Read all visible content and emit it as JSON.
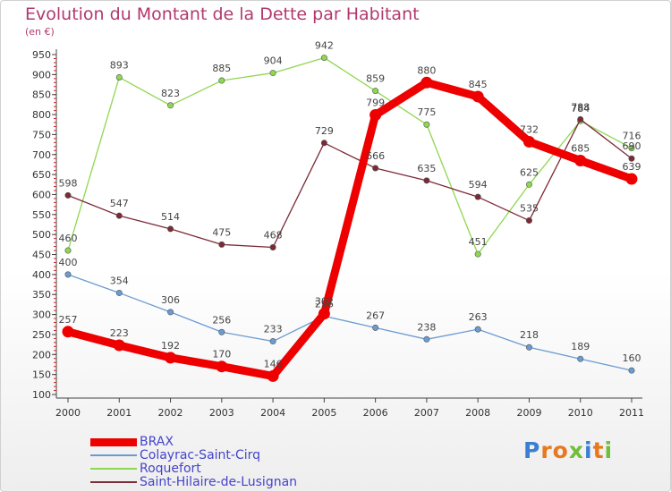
{
  "chart_data": {
    "type": "line",
    "title": "Evolution du Montant de la Dette par Habitant",
    "subtitle": "(en €)",
    "xlabel": "",
    "ylabel": "",
    "categories": [
      "2000",
      "2001",
      "2002",
      "2003",
      "2004",
      "2005",
      "2006",
      "2007",
      "2008",
      "2009",
      "2010",
      "2011"
    ],
    "ylim": [
      100,
      950
    ],
    "yticks": [
      100,
      150,
      200,
      250,
      300,
      350,
      400,
      450,
      500,
      550,
      600,
      650,
      700,
      750,
      800,
      850,
      900,
      950
    ],
    "grid": false,
    "legend_position": "bottom-left",
    "series": [
      {
        "name": "BRAX",
        "color": "#ee0000",
        "width": "thick",
        "values": [
          257,
          223,
          192,
          170,
          146,
          302,
          799,
          880,
          845,
          732,
          685,
          639
        ]
      },
      {
        "name": "Colayrac-Saint-Cirq",
        "color": "#6b9bd1",
        "width": "thin",
        "values": [
          400,
          354,
          306,
          256,
          233,
          296,
          267,
          238,
          263,
          218,
          189,
          160
        ]
      },
      {
        "name": "Roquefort",
        "color": "#8ed750",
        "width": "thin",
        "values": [
          460,
          893,
          823,
          885,
          904,
          942,
          859,
          775,
          451,
          625,
          784,
          716
        ]
      },
      {
        "name": "Saint-Hilaire-de-Lusignan",
        "color": "#7b2a36",
        "width": "thin",
        "values": [
          598,
          547,
          514,
          475,
          468,
          729,
          666,
          635,
          594,
          535,
          788,
          690
        ]
      }
    ]
  },
  "logo": {
    "text": "Proxiti",
    "colors": [
      "#3a7fd0",
      "#e8781e",
      "#e8781e",
      "#6fbf3a",
      "#3a7fd0",
      "#e8781e",
      "#6fbf3a"
    ]
  }
}
